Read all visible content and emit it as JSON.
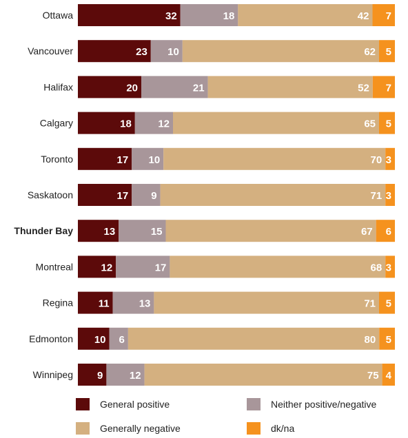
{
  "chart_data": {
    "type": "bar",
    "orientation": "horizontal",
    "stacked": true,
    "categories": [
      "Ottawa",
      "Vancouver",
      "Halifax",
      "Calgary",
      "Toronto",
      "Saskatoon",
      "Thunder Bay",
      "Montreal",
      "Regina",
      "Edmonton",
      "Winnipeg"
    ],
    "highlighted_category": "Thunder Bay",
    "series": [
      {
        "name": "General positive",
        "color": "#5c0a0a",
        "values": [
          32,
          23,
          20,
          18,
          17,
          17,
          13,
          12,
          11,
          10,
          9
        ]
      },
      {
        "name": "Neither positive/negative",
        "color": "#a8969a",
        "values": [
          18,
          10,
          21,
          12,
          10,
          9,
          15,
          17,
          13,
          6,
          12
        ]
      },
      {
        "name": "Generally negative",
        "color": "#d4b080",
        "values": [
          42,
          62,
          52,
          65,
          70,
          71,
          67,
          68,
          71,
          80,
          75
        ]
      },
      {
        "name": "dk/na",
        "color": "#f5921e",
        "values": [
          7,
          5,
          7,
          5,
          3,
          3,
          6,
          3,
          5,
          5,
          4
        ]
      }
    ],
    "legend_position": "bottom"
  }
}
